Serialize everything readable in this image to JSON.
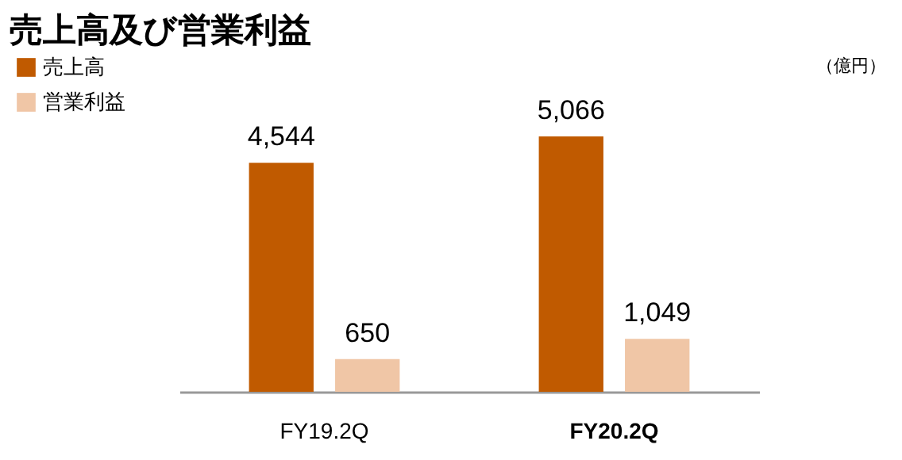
{
  "chart_data": {
    "type": "bar",
    "title": "売上高及び営業利益",
    "annotations": [
      "（億円）"
    ],
    "categories": [
      "FY19.2Q",
      "FY20.2Q"
    ],
    "series": [
      {
        "name": "売上高",
        "color": "#c05a00",
        "values": [
          4544,
          5066
        ],
        "value_labels": [
          "4,544",
          "5,066"
        ]
      },
      {
        "name": "営業利益",
        "color": "#f0c6a6",
        "values": [
          650,
          1049
        ],
        "value_labels": [
          "650",
          "1,049"
        ]
      }
    ],
    "legend": "top left"
  }
}
